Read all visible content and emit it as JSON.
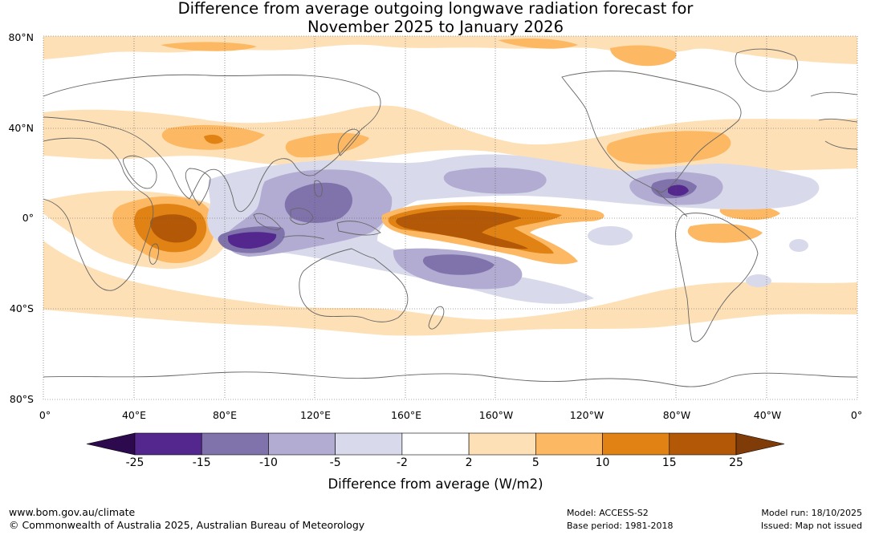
{
  "title": {
    "line1": "Difference from average outgoing longwave radiation forecast for",
    "line2": "November 2025 to January 2026"
  },
  "map": {
    "projection": "equirectangular",
    "lat_labels": [
      "80°N",
      "40°N",
      "0°",
      "40°S",
      "80°S"
    ],
    "lon_labels": [
      "0°",
      "40°E",
      "80°E",
      "120°E",
      "160°E",
      "160°W",
      "120°W",
      "80°W",
      "40°W",
      "0°"
    ],
    "regions": {
      "equatorial_pacific_anomaly": "strong positive (brown) tongue",
      "maritime_continent_anomaly": "negative (purple)",
      "western_indian_ocean_anomaly": "positive (orange/brown)"
    }
  },
  "colorbar": {
    "ticks": [
      "-25",
      "-15",
      "-10",
      "-5",
      "-2",
      "2",
      "5",
      "10",
      "15",
      "25"
    ],
    "colors": [
      "#2d0a4e",
      "#54278f",
      "#8073ac",
      "#b2abd2",
      "#d8daeb",
      "#ffffff",
      "#fee0b6",
      "#fdb863",
      "#e08214",
      "#b35806",
      "#7f3b08"
    ],
    "label": "Difference from average (W/m2)"
  },
  "footer": {
    "website": "www.bom.gov.au/climate",
    "copyright": "© Commonwealth of Australia 2025, Australian Bureau of Meteorology",
    "model": "Model: ACCESS-S2",
    "base_period": "Base period: 1981-2018",
    "model_run": "Model run: 18/10/2025",
    "issued": "Issued: Map not issued"
  }
}
